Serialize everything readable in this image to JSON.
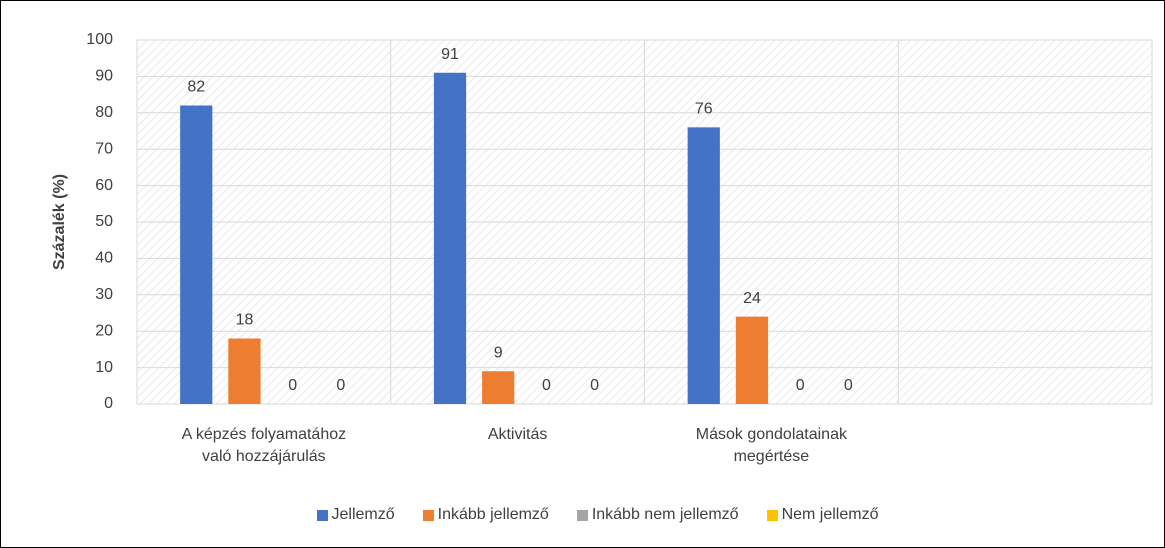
{
  "chart_data": {
    "type": "bar",
    "y_label": "Százalék (%)",
    "categories": [
      "A képzés folyamatához való hozzájárulás",
      "Aktivitás",
      "Mások gondolatainak megértése",
      null
    ],
    "series": [
      {
        "name": "Jellemző",
        "color": "#4472c4",
        "values": [
          82,
          91,
          76,
          null
        ]
      },
      {
        "name": "Inkább jellemző",
        "color": "#ed7d31",
        "values": [
          18,
          9,
          24,
          null
        ]
      },
      {
        "name": "Inkább nem jellemző",
        "color": "#a5a5a5",
        "values": [
          0,
          0,
          0,
          null
        ]
      },
      {
        "name": "Nem jellemző",
        "color": "#ffc000",
        "values": [
          0,
          0,
          0,
          null
        ]
      }
    ],
    "ylim": [
      0,
      100
    ],
    "yticks": [
      0,
      10,
      20,
      30,
      40,
      50,
      60,
      70,
      80,
      90,
      100
    ],
    "grid": true,
    "legend": "bottom"
  }
}
